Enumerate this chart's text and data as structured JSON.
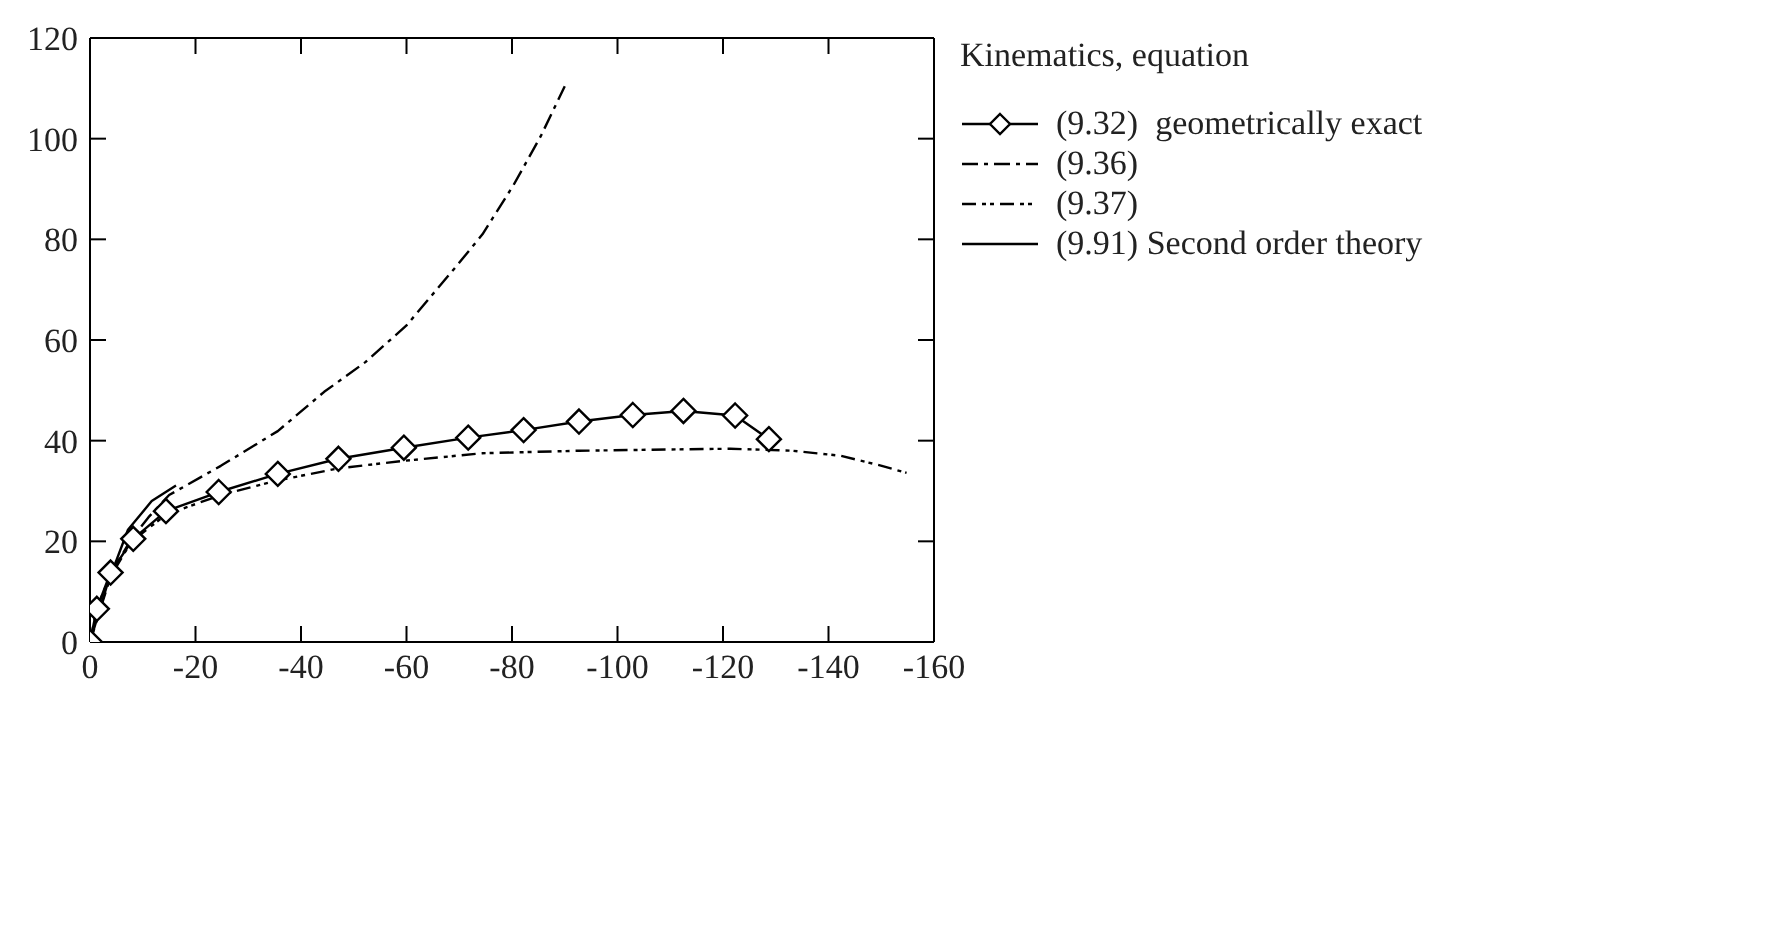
{
  "chart_data": {
    "type": "line",
    "legend_title": "Kinematics, equation",
    "legend": "top right",
    "xlim": [
      0,
      -160
    ],
    "xticks": [
      0,
      -20,
      -40,
      -60,
      -80,
      -100,
      -120,
      -140,
      -160
    ],
    "ylim": [
      0,
      120
    ],
    "yticks": [
      0,
      20,
      40,
      60,
      80,
      100,
      120
    ],
    "series": [
      {
        "name": "(9.32)  geometrically exact",
        "color": "#000000",
        "marker": "diamond",
        "line_style": "solid",
        "x": [
          0,
          -1.3,
          -3.9,
          -8.2,
          -14.4,
          -24.4,
          -35.6,
          -47.1,
          -59.5,
          -71.7,
          -82.2,
          -92.7,
          -102.9,
          -112.5,
          -122.3,
          -128.7
        ],
        "values": [
          0,
          6.6,
          13.8,
          20.5,
          26.0,
          29.8,
          33.4,
          36.4,
          38.6,
          40.6,
          42.1,
          43.8,
          45.1,
          45.9,
          45.0,
          40.3
        ]
      },
      {
        "name": "(9.36)",
        "color": "#000000",
        "marker": "none",
        "line_style": "dashed",
        "x": [
          0,
          -1.3,
          -3.9,
          -7.8,
          -11.1,
          -15,
          -24.8,
          -35.6,
          -44.4,
          -52.2,
          -60,
          -69.8,
          -74.4,
          -80.3,
          -85.5,
          -90
        ],
        "values": [
          0,
          6.7,
          13.5,
          20.4,
          24.8,
          29.2,
          35,
          41.9,
          49.7,
          55.6,
          62.9,
          75.1,
          81,
          90.8,
          100.6,
          110.4
        ]
      },
      {
        "name": "(9.37)",
        "color": "#000000",
        "marker": "none",
        "line_style": "dotted",
        "x": [
          0,
          -3.9,
          -7.8,
          -14.4,
          -24.8,
          -35.6,
          -47.1,
          -59.5,
          -74.4,
          -92.7,
          -113.5,
          -121.4,
          -133.1,
          -142.3,
          -150.1,
          -154.8
        ],
        "values": [
          0,
          13.0,
          19.9,
          25.3,
          29.2,
          32.1,
          34.5,
          36.0,
          37.5,
          38.0,
          38.3,
          38.4,
          38.0,
          37.0,
          35.0,
          33.6
        ]
      },
      {
        "name": "(9.91) Second order theory",
        "color": "#000000",
        "marker": "none",
        "line_style": "solid",
        "x": [
          0,
          -3.3,
          -7.2,
          -11.7,
          -16.3
        ],
        "values": [
          0,
          11.5,
          22.3,
          28.0,
          31.1
        ]
      }
    ]
  }
}
